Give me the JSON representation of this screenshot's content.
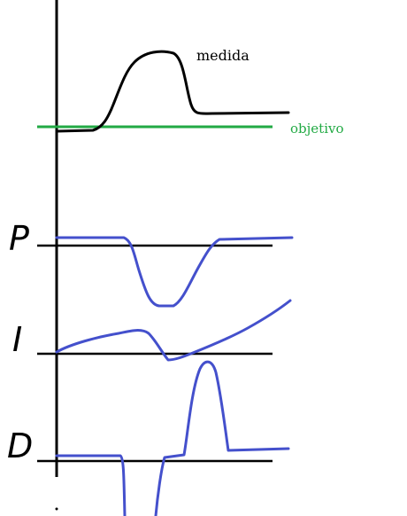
{
  "labels": {
    "measure": "medida",
    "target": "objetivo",
    "proportional": "P",
    "integral": "I",
    "derivative": "D"
  },
  "colors": {
    "axis": "#000000",
    "measure": "#000000",
    "target": "#22aa44",
    "term_curves": "#4450cc",
    "baselines": "#000000",
    "term_letters": "#000000"
  }
}
